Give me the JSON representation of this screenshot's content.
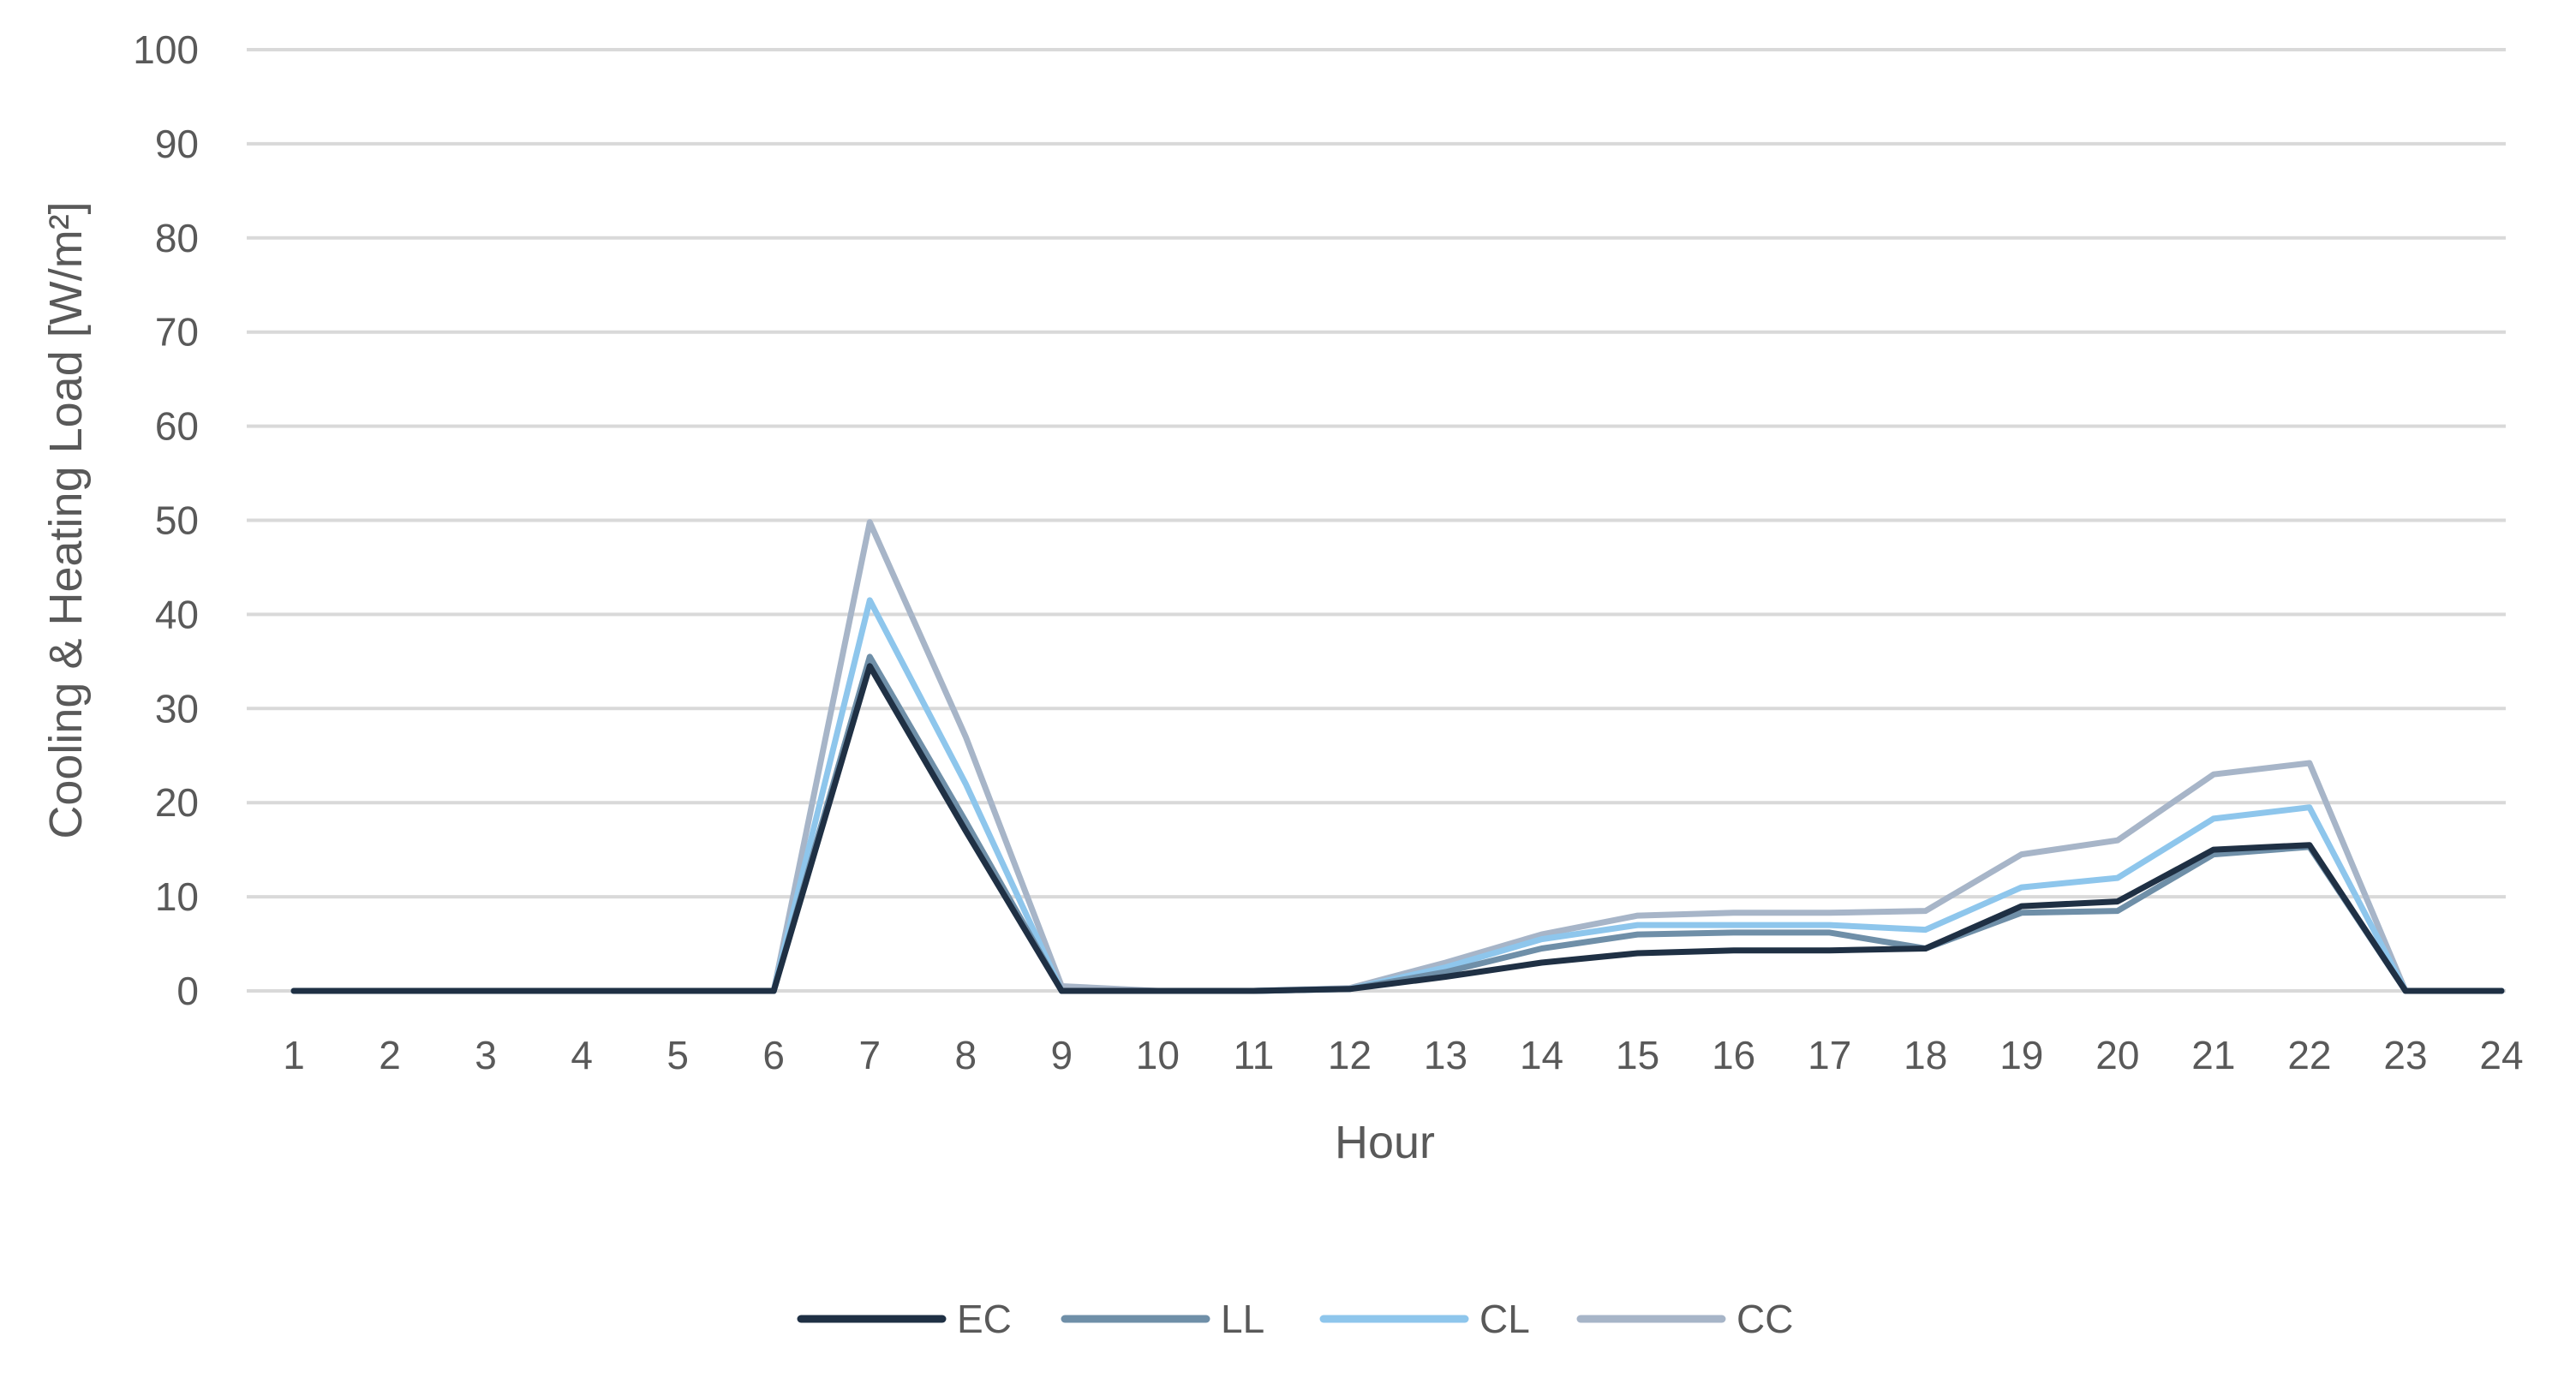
{
  "chart_data": {
    "type": "line",
    "title": "",
    "xlabel": "Hour",
    "ylabel": "Cooling & Heating Load [W/m²]",
    "ylim": [
      0,
      100
    ],
    "yticks": [
      "0",
      "10",
      "20",
      "30",
      "40",
      "50",
      "60",
      "70",
      "80",
      "90",
      "100"
    ],
    "categories": [
      "1",
      "2",
      "3",
      "4",
      "5",
      "6",
      "7",
      "8",
      "9",
      "10",
      "11",
      "12",
      "13",
      "14",
      "15",
      "16",
      "17",
      "18",
      "19",
      "20",
      "21",
      "22",
      "23",
      "24"
    ],
    "grid": "horizontal",
    "legend_position": "bottom",
    "series": [
      {
        "name": "EC",
        "color": "#1f3044",
        "values": [
          0,
          0,
          0,
          0,
          0,
          0,
          34.5,
          17,
          0,
          0,
          0,
          0.2,
          1.5,
          3,
          4,
          4.3,
          4.3,
          4.5,
          9,
          9.5,
          15,
          15.5,
          0,
          0
        ]
      },
      {
        "name": "LL",
        "color": "#6f8fa8",
        "values": [
          0,
          0,
          0,
          0,
          0,
          0,
          35.5,
          18,
          0,
          0,
          0,
          0.2,
          2,
          4.5,
          6,
          6.2,
          6.2,
          4.5,
          8.3,
          8.5,
          14.5,
          15.3,
          0,
          0
        ]
      },
      {
        "name": "CL",
        "color": "#8ec6ec",
        "values": [
          0,
          0,
          0,
          0,
          0,
          0,
          41.5,
          22,
          0,
          0,
          0,
          0.2,
          2.5,
          5.5,
          7,
          7,
          7,
          6.5,
          11,
          12,
          18.3,
          19.5,
          0,
          0
        ]
      },
      {
        "name": "CC",
        "color": "#a7b5c8",
        "values": [
          0,
          0,
          0,
          0,
          0,
          0,
          49.8,
          27,
          0.5,
          0,
          0,
          0.3,
          3,
          6,
          8,
          8.3,
          8.3,
          8.5,
          14.5,
          16,
          23,
          24.2,
          0,
          0
        ]
      }
    ]
  }
}
